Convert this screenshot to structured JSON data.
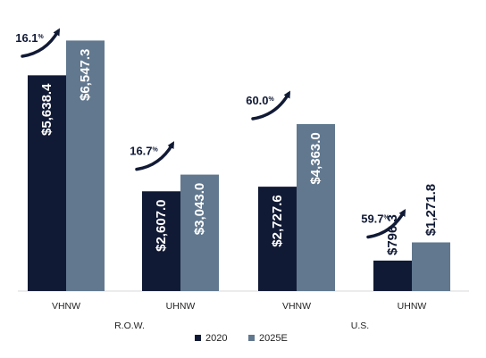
{
  "chart_data": {
    "type": "bar",
    "title": "",
    "xlabel": "",
    "ylabel": "",
    "ylim": [
      0,
      7000
    ],
    "categories": [
      "VHNW",
      "UHNW",
      "VHNW",
      "UHNW"
    ],
    "groups": [
      {
        "label": "R.O.W.",
        "category_indices": [
          0,
          1
        ]
      },
      {
        "label": "U.S.",
        "category_indices": [
          2,
          3
        ]
      }
    ],
    "series": [
      {
        "name": "2020",
        "color": "#111a35",
        "values": [
          5638.4,
          2607.0,
          2727.6,
          796.3
        ],
        "labels": [
          "$5,638.4",
          "$2,607.0",
          "$2,727.6",
          "$796.3"
        ]
      },
      {
        "name": "2025E",
        "color": "#61788f",
        "values": [
          6547.3,
          3043.0,
          4363.0,
          1271.8
        ],
        "labels": [
          "$6,547.3",
          "$3,043.0",
          "$4,363.0",
          "$1,271.8"
        ]
      }
    ],
    "growth": [
      {
        "value": "16.1",
        "unit": "%"
      },
      {
        "value": "16.7",
        "unit": "%"
      },
      {
        "value": "60.0",
        "unit": "%"
      },
      {
        "value": "59.7",
        "unit": "%"
      }
    ],
    "legend": {
      "position": "bottom",
      "entries": [
        "2020",
        "2025E"
      ]
    },
    "grid": false
  }
}
